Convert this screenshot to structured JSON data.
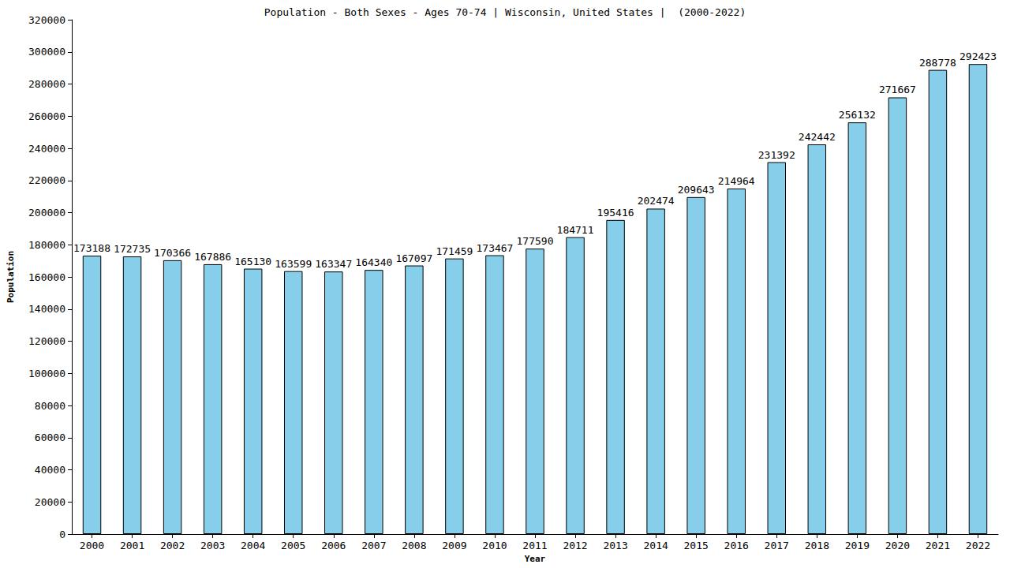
{
  "chart_data": {
    "type": "bar",
    "title": "Population - Both Sexes - Ages 70-74 | Wisconsin, United States |  (2000-2022)",
    "x_label": "Year",
    "y_label": "Population",
    "categories": [
      "2000",
      "2001",
      "2002",
      "2003",
      "2004",
      "2005",
      "2006",
      "2007",
      "2008",
      "2009",
      "2010",
      "2011",
      "2012",
      "2013",
      "2014",
      "2015",
      "2016",
      "2017",
      "2018",
      "2019",
      "2020",
      "2021",
      "2022"
    ],
    "values": [
      173188,
      172735,
      170366,
      167886,
      165130,
      163599,
      163347,
      164340,
      167097,
      171459,
      173467,
      177590,
      184711,
      195416,
      202474,
      209643,
      214964,
      231392,
      242442,
      256132,
      271667,
      288778,
      292423
    ],
    "color": "#87ceeb",
    "ylim": [
      0,
      320000
    ],
    "yticks": [
      0,
      20000,
      40000,
      60000,
      80000,
      100000,
      120000,
      140000,
      160000,
      180000,
      200000,
      220000,
      240000,
      260000,
      280000,
      300000,
      320000
    ],
    "grid": false,
    "data_labels": true
  }
}
